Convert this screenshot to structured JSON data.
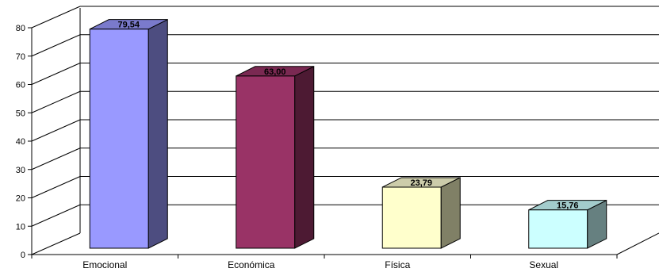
{
  "chart_data": {
    "type": "bar",
    "categories": [
      "Emocional",
      "Económica",
      "Física",
      "Sexual"
    ],
    "values": [
      79.54,
      63.0,
      23.79,
      15.76
    ],
    "value_labels": [
      "79,54",
      "63,00",
      "23,79",
      "15,76"
    ],
    "title": "",
    "xlabel": "",
    "ylabel": "",
    "ylim": [
      0,
      80
    ],
    "yticks": [
      "0",
      "10",
      "20",
      "30",
      "40",
      "50",
      "60",
      "70",
      "80"
    ],
    "grid": true,
    "legend": "none",
    "style": "3d-column",
    "colors": {
      "front": [
        "#9999ff",
        "#993366",
        "#ffffcc",
        "#ccffff"
      ],
      "side": [
        "#4d4d80",
        "#4d1a33",
        "#808066",
        "#668080"
      ],
      "top": [
        "#7a7acc",
        "#7a2952",
        "#ccccaa",
        "#a3cccc"
      ]
    }
  }
}
